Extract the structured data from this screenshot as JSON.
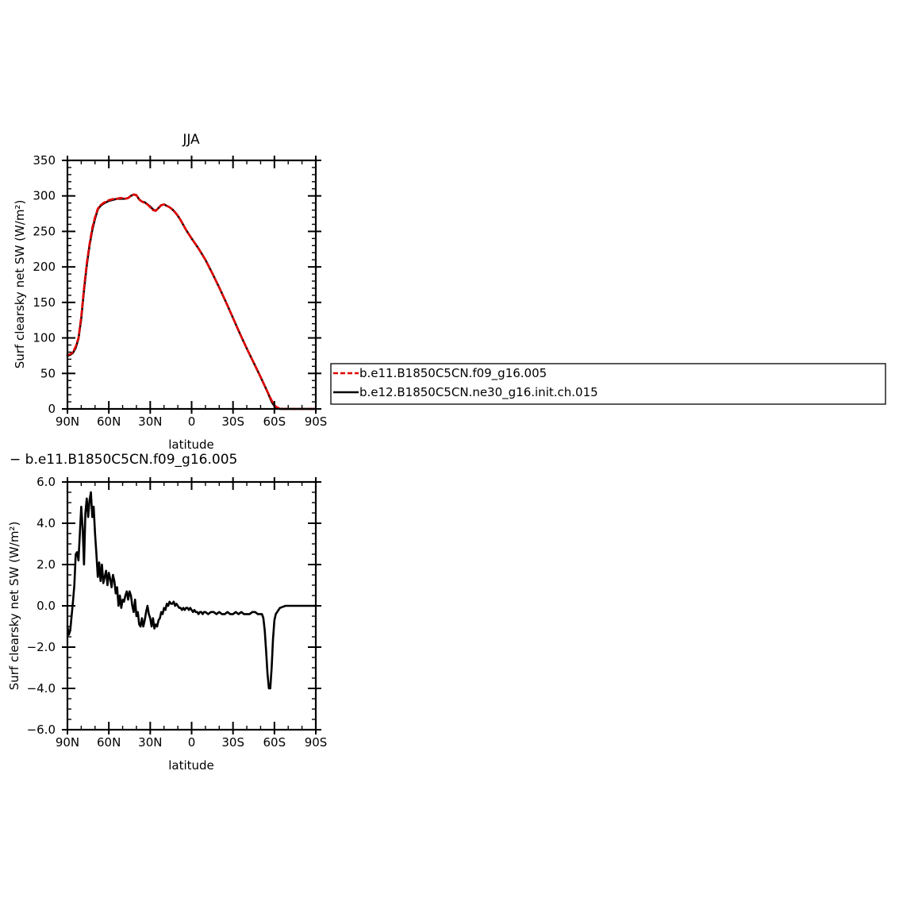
{
  "chart_data": [
    {
      "type": "line",
      "title": "JJA",
      "xlabel": "latitude",
      "ylabel": "Surf clearsky net SW (W/m²)",
      "x_ticks": [
        "90N",
        "60N",
        "30N",
        "0",
        "30S",
        "60S",
        "90S"
      ],
      "x_tick_values": [
        90,
        60,
        30,
        0,
        -30,
        -60,
        -90
      ],
      "xlim": [
        90,
        -90
      ],
      "ylim": [
        0,
        350
      ],
      "y_ticks": [
        "0",
        "50",
        "100",
        "150",
        "200",
        "250",
        "300",
        "350"
      ],
      "y_tick_values": [
        0,
        50,
        100,
        150,
        200,
        250,
        300,
        350
      ],
      "legend": {
        "placement": "right",
        "entries": [
          {
            "label": "b.e11.B1850C5CN.f09_g16.005",
            "color": "#e00000",
            "dash": true
          },
          {
            "label": "b.e12.B1850C5CN.ne30_g16.init.ch.015",
            "color": "#000000",
            "dash": false
          }
        ]
      },
      "series": [
        {
          "name": "b.e11.B1850C5CN.f09_g16.005",
          "color": "#e00000",
          "dash": true,
          "x": [
            90,
            88,
            86,
            84,
            82,
            80,
            78,
            76,
            74,
            72,
            70,
            68,
            66,
            64,
            62,
            60,
            58,
            56,
            54,
            52,
            50,
            48,
            46,
            44,
            42,
            40,
            38,
            36,
            34,
            32,
            30,
            28,
            26,
            24,
            22,
            20,
            18,
            16,
            14,
            12,
            10,
            8,
            6,
            4,
            2,
            0,
            -5,
            -10,
            -15,
            -20,
            -25,
            -30,
            -35,
            -40,
            -45,
            -50,
            -55,
            -58,
            -60,
            -62,
            -64,
            -66,
            -70,
            -75,
            -80,
            -90
          ],
          "y": [
            76,
            77,
            80,
            88,
            100,
            130,
            170,
            205,
            232,
            255,
            270,
            282,
            287,
            290,
            292,
            294,
            295,
            296,
            296,
            297,
            297,
            296,
            297,
            300,
            302,
            301,
            295,
            292,
            290,
            288,
            284,
            280,
            279,
            283,
            287,
            288,
            286,
            284,
            281,
            277,
            272,
            266,
            259,
            252,
            246,
            240,
            226,
            210,
            191,
            171,
            150,
            128,
            106,
            85,
            65,
            45,
            24,
            12,
            5,
            2,
            1,
            0,
            0,
            0,
            0,
            0
          ]
        },
        {
          "name": "b.e12.B1850C5CN.ne30_g16.init.ch.015",
          "color": "#000000",
          "dash": false,
          "x": [
            90,
            88,
            86,
            84,
            82,
            80,
            78,
            76,
            74,
            72,
            70,
            68,
            66,
            64,
            62,
            60,
            58,
            56,
            54,
            52,
            50,
            48,
            46,
            44,
            42,
            40,
            38,
            36,
            34,
            32,
            30,
            28,
            26,
            24,
            22,
            20,
            18,
            16,
            14,
            12,
            10,
            8,
            6,
            4,
            2,
            0,
            -5,
            -10,
            -15,
            -20,
            -25,
            -30,
            -35,
            -40,
            -45,
            -50,
            -55,
            -58,
            -60,
            -62,
            -64,
            -66,
            -70,
            -75,
            -80,
            -90
          ],
          "y": [
            75,
            76,
            79,
            86,
            99,
            127,
            167,
            202,
            230,
            252,
            268,
            281,
            286,
            289,
            291,
            293,
            294,
            295,
            296,
            296,
            296,
            296,
            297,
            300,
            302,
            301,
            295,
            292,
            291,
            288,
            285,
            281,
            279,
            283,
            287,
            288,
            286,
            284,
            281,
            277,
            272,
            266,
            259,
            252,
            246,
            240,
            226,
            210,
            191,
            171,
            150,
            128,
            106,
            85,
            65,
            45,
            24,
            10,
            4,
            1,
            0,
            0,
            0,
            0,
            0,
            0
          ]
        }
      ]
    },
    {
      "type": "line",
      "title": "− b.e11.B1850C5CN.f09_g16.005",
      "xlabel": "latitude",
      "ylabel": "Surf clearsky net SW (W/m²)",
      "x_ticks": [
        "90N",
        "60N",
        "30N",
        "0",
        "30S",
        "60S",
        "90S"
      ],
      "x_tick_values": [
        90,
        60,
        30,
        0,
        -30,
        -60,
        -90
      ],
      "xlim": [
        90,
        -90
      ],
      "ylim": [
        -6,
        6
      ],
      "y_ticks": [
        "−6.0",
        "−4.0",
        "−2.0",
        "0.0",
        "2.0",
        "4.0",
        "6.0"
      ],
      "y_tick_values": [
        -6,
        -4,
        -2,
        0,
        2,
        4,
        6
      ],
      "series": [
        {
          "name": "",
          "color": "#000000",
          "dash": false,
          "x": [
            90,
            89,
            88,
            87,
            86,
            85,
            84,
            83,
            82,
            81,
            80,
            79,
            78,
            77,
            76,
            75,
            74,
            73,
            72,
            71,
            70,
            69,
            68,
            67,
            66,
            65,
            64,
            63,
            62,
            61,
            60,
            59,
            58,
            57,
            56,
            55,
            54,
            53,
            52,
            51,
            50,
            49,
            48,
            47,
            46,
            45,
            44,
            43,
            42,
            41,
            40,
            39,
            38,
            37,
            36,
            35,
            34,
            33,
            32,
            31,
            30,
            29,
            28,
            27,
            26,
            25,
            24,
            23,
            22,
            21,
            20,
            19,
            18,
            17,
            16,
            15,
            14,
            13,
            12,
            11,
            10,
            9,
            8,
            7,
            6,
            5,
            4,
            3,
            2,
            1,
            0,
            -1,
            -2,
            -3,
            -4,
            -5,
            -6,
            -7,
            -8,
            -9,
            -10,
            -12,
            -14,
            -16,
            -18,
            -20,
            -22,
            -24,
            -26,
            -28,
            -30,
            -32,
            -34,
            -36,
            -38,
            -40,
            -42,
            -44,
            -46,
            -48,
            -50,
            -51,
            -52,
            -53,
            -54,
            -55,
            -56,
            -57,
            -58,
            -59,
            -60,
            -61,
            -62,
            -63,
            -64,
            -66,
            -68,
            -70,
            -75,
            -80,
            -85,
            -90
          ],
          "y": [
            -1.0,
            -1.4,
            -1.2,
            -0.5,
            0.2,
            1.0,
            2.5,
            2.6,
            2.2,
            3.5,
            4.8,
            3.8,
            2.0,
            4.5,
            5.2,
            4.3,
            5.1,
            5.5,
            4.3,
            4.8,
            3.5,
            2.5,
            1.4,
            2.1,
            1.2,
            2.0,
            1.1,
            1.4,
            1.7,
            1.0,
            1.6,
            1.3,
            0.9,
            1.5,
            1.2,
            0.6,
            0.9,
            0.0,
            0.5,
            -0.1,
            0.3,
            0.2,
            0.5,
            0.7,
            0.3,
            0.7,
            0.5,
            0.0,
            -0.3,
            0.3,
            -0.5,
            -0.3,
            -0.9,
            -1.0,
            -0.6,
            -1.0,
            -0.7,
            -0.3,
            0.0,
            -0.4,
            -0.6,
            -1.0,
            -0.6,
            -1.1,
            -0.9,
            -1.0,
            -0.7,
            -0.6,
            -0.3,
            -0.4,
            -0.1,
            -0.2,
            0.1,
            0.0,
            0.2,
            0.1,
            0.1,
            0.2,
            0.0,
            0.1,
            0.0,
            -0.1,
            -0.1,
            -0.2,
            -0.1,
            -0.2,
            -0.1,
            -0.1,
            -0.2,
            -0.1,
            -0.2,
            -0.3,
            -0.2,
            -0.3,
            -0.3,
            -0.4,
            -0.3,
            -0.3,
            -0.4,
            -0.3,
            -0.3,
            -0.4,
            -0.3,
            -0.3,
            -0.4,
            -0.3,
            -0.4,
            -0.4,
            -0.3,
            -0.4,
            -0.4,
            -0.3,
            -0.4,
            -0.3,
            -0.4,
            -0.4,
            -0.4,
            -0.3,
            -0.3,
            -0.4,
            -0.4,
            -0.4,
            -0.6,
            -1.2,
            -2.2,
            -3.3,
            -4.0,
            -4.0,
            -3.0,
            -1.6,
            -0.7,
            -0.4,
            -0.3,
            -0.2,
            -0.1,
            -0.05,
            0.0,
            0.0,
            0.0,
            0.0,
            0.0,
            0.0
          ]
        }
      ]
    }
  ]
}
